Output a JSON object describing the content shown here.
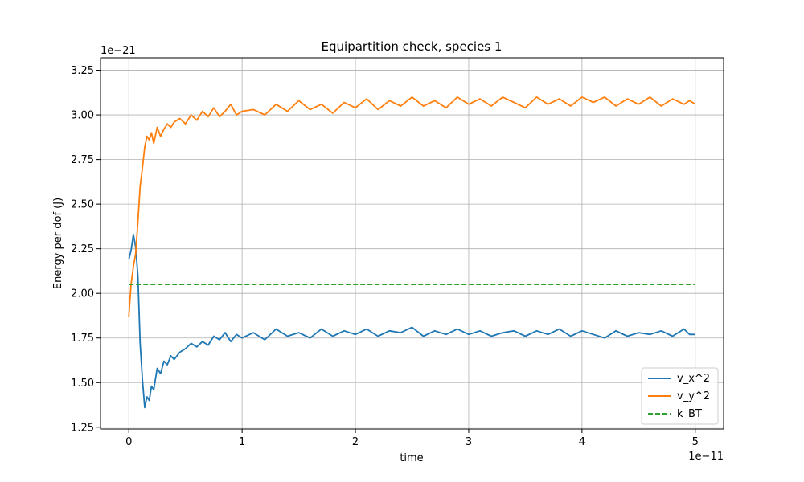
{
  "chart_data": {
    "type": "line",
    "title": "Equipartition check, species 1",
    "xlabel": "time",
    "ylabel": "Energy per dof (J)",
    "x_offset_text": "1e−11",
    "y_offset_text": "1e−21",
    "xlim": [
      -0.25,
      5.25
    ],
    "ylim": [
      1.24,
      3.32
    ],
    "x_ticks": [
      0,
      1,
      2,
      3,
      4,
      5
    ],
    "x_tick_labels": [
      "0",
      "1",
      "2",
      "3",
      "4",
      "5"
    ],
    "y_ticks": [
      1.25,
      1.5,
      1.75,
      2.0,
      2.25,
      2.5,
      2.75,
      3.0,
      3.25
    ],
    "y_tick_labels": [
      "1.25",
      "1.50",
      "1.75",
      "2.00",
      "2.25",
      "2.50",
      "2.75",
      "3.00",
      "3.25"
    ],
    "grid": true,
    "legend_position": "bottom-right",
    "series": [
      {
        "name": "v_x^2",
        "color": "#1f77b4",
        "style": "solid",
        "points": [
          [
            0.0,
            2.19
          ],
          [
            0.02,
            2.24
          ],
          [
            0.04,
            2.33
          ],
          [
            0.06,
            2.26
          ],
          [
            0.08,
            2.1
          ],
          [
            0.1,
            1.72
          ],
          [
            0.12,
            1.52
          ],
          [
            0.14,
            1.36
          ],
          [
            0.16,
            1.42
          ],
          [
            0.18,
            1.4
          ],
          [
            0.2,
            1.48
          ],
          [
            0.22,
            1.46
          ],
          [
            0.25,
            1.58
          ],
          [
            0.28,
            1.55
          ],
          [
            0.31,
            1.62
          ],
          [
            0.34,
            1.6
          ],
          [
            0.37,
            1.65
          ],
          [
            0.4,
            1.63
          ],
          [
            0.45,
            1.67
          ],
          [
            0.5,
            1.69
          ],
          [
            0.55,
            1.72
          ],
          [
            0.6,
            1.7
          ],
          [
            0.65,
            1.73
          ],
          [
            0.7,
            1.71
          ],
          [
            0.75,
            1.76
          ],
          [
            0.8,
            1.74
          ],
          [
            0.85,
            1.78
          ],
          [
            0.9,
            1.73
          ],
          [
            0.95,
            1.77
          ],
          [
            1.0,
            1.75
          ],
          [
            1.1,
            1.78
          ],
          [
            1.2,
            1.74
          ],
          [
            1.3,
            1.8
          ],
          [
            1.4,
            1.76
          ],
          [
            1.5,
            1.78
          ],
          [
            1.6,
            1.75
          ],
          [
            1.7,
            1.8
          ],
          [
            1.8,
            1.76
          ],
          [
            1.9,
            1.79
          ],
          [
            2.0,
            1.77
          ],
          [
            2.1,
            1.8
          ],
          [
            2.2,
            1.76
          ],
          [
            2.3,
            1.79
          ],
          [
            2.4,
            1.78
          ],
          [
            2.5,
            1.81
          ],
          [
            2.6,
            1.76
          ],
          [
            2.7,
            1.79
          ],
          [
            2.8,
            1.77
          ],
          [
            2.9,
            1.8
          ],
          [
            3.0,
            1.77
          ],
          [
            3.1,
            1.79
          ],
          [
            3.2,
            1.76
          ],
          [
            3.3,
            1.78
          ],
          [
            3.4,
            1.79
          ],
          [
            3.5,
            1.76
          ],
          [
            3.6,
            1.79
          ],
          [
            3.7,
            1.77
          ],
          [
            3.8,
            1.8
          ],
          [
            3.9,
            1.76
          ],
          [
            4.0,
            1.79
          ],
          [
            4.1,
            1.77
          ],
          [
            4.2,
            1.75
          ],
          [
            4.3,
            1.79
          ],
          [
            4.4,
            1.76
          ],
          [
            4.5,
            1.78
          ],
          [
            4.6,
            1.77
          ],
          [
            4.7,
            1.79
          ],
          [
            4.8,
            1.76
          ],
          [
            4.9,
            1.8
          ],
          [
            4.95,
            1.77
          ],
          [
            5.0,
            1.77
          ]
        ]
      },
      {
        "name": "v_y^2",
        "color": "#ff7f0e",
        "style": "solid",
        "points": [
          [
            0.0,
            1.87
          ],
          [
            0.02,
            2.05
          ],
          [
            0.04,
            2.15
          ],
          [
            0.06,
            2.22
          ],
          [
            0.08,
            2.4
          ],
          [
            0.1,
            2.6
          ],
          [
            0.12,
            2.7
          ],
          [
            0.14,
            2.82
          ],
          [
            0.16,
            2.88
          ],
          [
            0.18,
            2.86
          ],
          [
            0.2,
            2.9
          ],
          [
            0.22,
            2.84
          ],
          [
            0.25,
            2.93
          ],
          [
            0.28,
            2.88
          ],
          [
            0.31,
            2.92
          ],
          [
            0.34,
            2.95
          ],
          [
            0.37,
            2.93
          ],
          [
            0.4,
            2.96
          ],
          [
            0.45,
            2.98
          ],
          [
            0.5,
            2.95
          ],
          [
            0.55,
            3.0
          ],
          [
            0.6,
            2.97
          ],
          [
            0.65,
            3.02
          ],
          [
            0.7,
            2.99
          ],
          [
            0.75,
            3.04
          ],
          [
            0.8,
            2.99
          ],
          [
            0.85,
            3.02
          ],
          [
            0.9,
            3.06
          ],
          [
            0.95,
            3.0
          ],
          [
            1.0,
            3.02
          ],
          [
            1.1,
            3.03
          ],
          [
            1.2,
            3.0
          ],
          [
            1.3,
            3.06
          ],
          [
            1.4,
            3.02
          ],
          [
            1.5,
            3.08
          ],
          [
            1.6,
            3.03
          ],
          [
            1.7,
            3.06
          ],
          [
            1.8,
            3.01
          ],
          [
            1.9,
            3.07
          ],
          [
            2.0,
            3.04
          ],
          [
            2.1,
            3.09
          ],
          [
            2.2,
            3.03
          ],
          [
            2.3,
            3.08
          ],
          [
            2.4,
            3.05
          ],
          [
            2.5,
            3.1
          ],
          [
            2.6,
            3.05
          ],
          [
            2.7,
            3.08
          ],
          [
            2.8,
            3.04
          ],
          [
            2.9,
            3.1
          ],
          [
            3.0,
            3.06
          ],
          [
            3.1,
            3.09
          ],
          [
            3.2,
            3.05
          ],
          [
            3.3,
            3.1
          ],
          [
            3.4,
            3.07
          ],
          [
            3.5,
            3.04
          ],
          [
            3.6,
            3.1
          ],
          [
            3.7,
            3.06
          ],
          [
            3.8,
            3.09
          ],
          [
            3.9,
            3.05
          ],
          [
            4.0,
            3.1
          ],
          [
            4.1,
            3.07
          ],
          [
            4.2,
            3.1
          ],
          [
            4.3,
            3.05
          ],
          [
            4.4,
            3.09
          ],
          [
            4.5,
            3.06
          ],
          [
            4.6,
            3.1
          ],
          [
            4.7,
            3.05
          ],
          [
            4.8,
            3.09
          ],
          [
            4.9,
            3.06
          ],
          [
            4.95,
            3.08
          ],
          [
            5.0,
            3.06
          ]
        ]
      },
      {
        "name": "k_BT",
        "color": "#2ca02c",
        "style": "dashed",
        "points": [
          [
            0.0,
            2.05
          ],
          [
            5.0,
            2.05
          ]
        ]
      }
    ]
  }
}
